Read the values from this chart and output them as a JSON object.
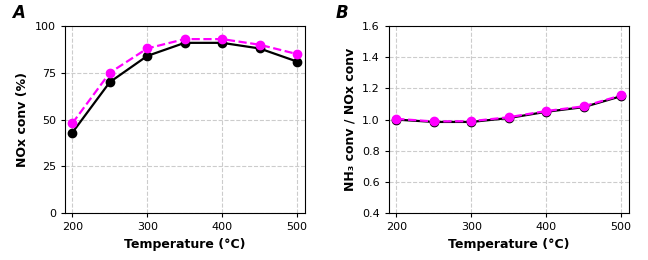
{
  "panel_A": {
    "label": "A",
    "xlabel": "Temperature (°C)",
    "ylabel": "NOx conv (%)",
    "xlim": [
      190,
      510
    ],
    "ylim": [
      0,
      100
    ],
    "yticks": [
      0,
      25,
      50,
      75,
      100
    ],
    "xticks": [
      200,
      300,
      400,
      500
    ],
    "black_x": [
      200,
      250,
      300,
      350,
      400,
      450,
      500
    ],
    "black_y": [
      43,
      70,
      84,
      91,
      91,
      88,
      81
    ],
    "magenta_x": [
      200,
      250,
      300,
      350,
      400,
      450,
      500
    ],
    "magenta_y": [
      48,
      75,
      88,
      93,
      93,
      90,
      85
    ]
  },
  "panel_B": {
    "label": "B",
    "xlabel": "Temperature (°C)",
    "ylabel": "NH₃ conv / NOx conv",
    "xlim": [
      190,
      510
    ],
    "ylim": [
      0.4,
      1.6
    ],
    "yticks": [
      0.4,
      0.6,
      0.8,
      1.0,
      1.2,
      1.4,
      1.6
    ],
    "xticks": [
      200,
      300,
      400,
      500
    ],
    "black_x": [
      200,
      250,
      300,
      350,
      400,
      450,
      500
    ],
    "black_y": [
      1.0,
      0.985,
      0.985,
      1.01,
      1.05,
      1.08,
      1.15
    ],
    "magenta_x": [
      200,
      250,
      300,
      350,
      400,
      450,
      500
    ],
    "magenta_y": [
      1.005,
      0.988,
      0.99,
      1.015,
      1.055,
      1.085,
      1.155
    ]
  },
  "black_color": "#000000",
  "magenta_color": "#FF00FF",
  "marker_size": 6,
  "line_width": 1.6,
  "grid_color": "#CCCCCC",
  "grid_style": "--",
  "bg_color": "#FFFFFF",
  "label_fontsize": 9,
  "tick_fontsize": 8,
  "panel_label_fontsize": 12
}
